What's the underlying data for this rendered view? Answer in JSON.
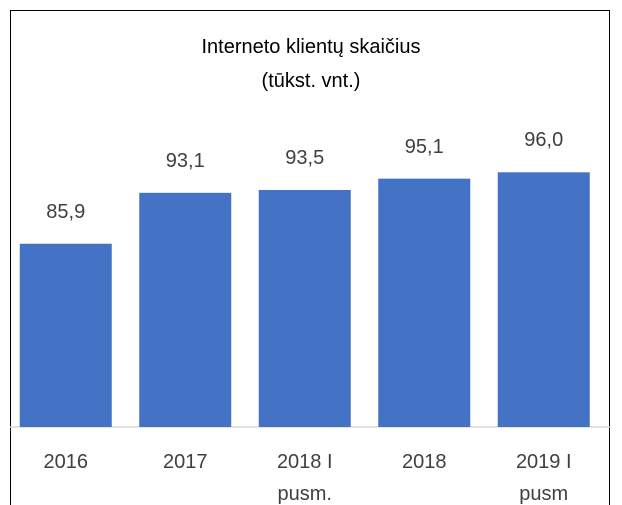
{
  "chart_data": {
    "type": "bar",
    "title": "Interneto klientų skaičius (tūkst. vnt.)",
    "categories": [
      "2016",
      "2017",
      "2018 I pusm.",
      "2018",
      "2019 I pusm"
    ],
    "values": [
      85.9,
      93.1,
      93.5,
      95.1,
      96.0
    ],
    "value_labels": [
      "85,9",
      "93,1",
      "93,5",
      "95,1",
      "96,0"
    ],
    "color": "#4472c4",
    "ylim": [
      60,
      100
    ]
  }
}
